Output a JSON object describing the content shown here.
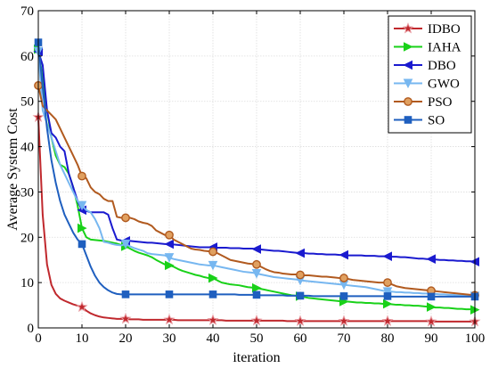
{
  "chart_data": {
    "type": "line",
    "title": "",
    "xlabel": "iteration",
    "ylabel": "Average System Cost",
    "xlim": [
      0,
      100
    ],
    "ylim": [
      0,
      70
    ],
    "xticks": [
      0,
      10,
      20,
      30,
      40,
      50,
      60,
      70,
      80,
      90,
      100
    ],
    "yticks": [
      0,
      10,
      20,
      30,
      40,
      50,
      60,
      70
    ],
    "grid": true,
    "legend_position": "top-right",
    "x": [
      0,
      1,
      2,
      3,
      4,
      5,
      6,
      7,
      8,
      9,
      10,
      11,
      12,
      13,
      14,
      15,
      16,
      17,
      18,
      19,
      20,
      21,
      22,
      23,
      24,
      25,
      26,
      27,
      28,
      29,
      30,
      31,
      32,
      33,
      34,
      35,
      36,
      37,
      38,
      39,
      40,
      41,
      42,
      43,
      44,
      45,
      46,
      47,
      48,
      49,
      50,
      51,
      52,
      53,
      54,
      55,
      56,
      57,
      58,
      59,
      60,
      61,
      62,
      63,
      64,
      65,
      66,
      67,
      68,
      69,
      70,
      71,
      72,
      73,
      74,
      75,
      76,
      77,
      78,
      79,
      80,
      81,
      82,
      83,
      84,
      85,
      86,
      87,
      88,
      89,
      90,
      91,
      92,
      93,
      94,
      95,
      96,
      97,
      98,
      99,
      100
    ],
    "series": [
      {
        "name": "IDBO",
        "color": "#c0282d",
        "marker": "star",
        "values": [
          46.5,
          25.0,
          14.0,
          9.5,
          7.5,
          6.5,
          6.0,
          5.6,
          5.2,
          4.9,
          4.6,
          3.8,
          3.2,
          2.8,
          2.5,
          2.3,
          2.2,
          2.1,
          2.0,
          2.0,
          2.0,
          1.9,
          1.9,
          1.9,
          1.8,
          1.8,
          1.8,
          1.8,
          1.8,
          1.8,
          1.8,
          1.8,
          1.7,
          1.7,
          1.7,
          1.7,
          1.7,
          1.7,
          1.7,
          1.7,
          1.7,
          1.7,
          1.7,
          1.6,
          1.6,
          1.6,
          1.6,
          1.6,
          1.6,
          1.6,
          1.6,
          1.6,
          1.6,
          1.6,
          1.6,
          1.6,
          1.6,
          1.5,
          1.5,
          1.5,
          1.5,
          1.5,
          1.5,
          1.5,
          1.5,
          1.5,
          1.5,
          1.5,
          1.5,
          1.5,
          1.5,
          1.5,
          1.5,
          1.5,
          1.5,
          1.5,
          1.5,
          1.5,
          1.5,
          1.5,
          1.5,
          1.5,
          1.5,
          1.5,
          1.5,
          1.5,
          1.5,
          1.5,
          1.5,
          1.5,
          1.4,
          1.4,
          1.4,
          1.4,
          1.4,
          1.4,
          1.4,
          1.4,
          1.4,
          1.4,
          1.4
        ]
      },
      {
        "name": "IAHA",
        "color": "#19d119",
        "marker": "triangle-right",
        "values": [
          61.5,
          55.0,
          48.0,
          42.0,
          38.0,
          36.0,
          35.5,
          34.0,
          31.0,
          27.0,
          22.0,
          20.0,
          19.5,
          19.4,
          19.3,
          19.2,
          19.0,
          18.8,
          18.6,
          18.3,
          18.0,
          17.5,
          17.0,
          16.6,
          16.3,
          16.0,
          15.6,
          15.0,
          14.5,
          14.0,
          13.8,
          13.5,
          13.0,
          12.6,
          12.3,
          12.0,
          11.7,
          11.5,
          11.2,
          11.0,
          11.0,
          10.5,
          10.0,
          9.8,
          9.6,
          9.5,
          9.4,
          9.2,
          9.0,
          8.9,
          8.8,
          8.6,
          8.4,
          8.2,
          8.0,
          7.8,
          7.6,
          7.4,
          7.2,
          7.1,
          7.0,
          6.8,
          6.6,
          6.5,
          6.4,
          6.3,
          6.2,
          6.1,
          6.0,
          5.9,
          5.8,
          5.8,
          5.7,
          5.6,
          5.6,
          5.5,
          5.5,
          5.4,
          5.4,
          5.3,
          5.3,
          5.2,
          5.1,
          5.1,
          5.0,
          5.0,
          4.9,
          4.9,
          4.8,
          4.7,
          4.6,
          4.5,
          4.5,
          4.4,
          4.4,
          4.3,
          4.2,
          4.2,
          4.1,
          4.1,
          4.0
        ]
      },
      {
        "name": "DBO",
        "color": "#1a1acf",
        "marker": "triangle-left",
        "values": [
          61.0,
          58.0,
          48.0,
          43.0,
          42.0,
          40.0,
          39.0,
          34.0,
          31.0,
          28.0,
          26.0,
          25.8,
          25.5,
          25.5,
          25.5,
          25.5,
          25.0,
          22.0,
          19.5,
          19.3,
          19.2,
          19.2,
          19.1,
          19.0,
          18.9,
          18.8,
          18.8,
          18.7,
          18.6,
          18.5,
          18.5,
          18.4,
          18.3,
          18.2,
          18.1,
          18.0,
          17.9,
          17.8,
          17.8,
          17.8,
          17.8,
          17.7,
          17.7,
          17.7,
          17.6,
          17.6,
          17.6,
          17.5,
          17.5,
          17.5,
          17.4,
          17.3,
          17.2,
          17.1,
          17.0,
          17.0,
          16.9,
          16.8,
          16.7,
          16.6,
          16.5,
          16.5,
          16.4,
          16.4,
          16.3,
          16.3,
          16.2,
          16.2,
          16.2,
          16.1,
          16.1,
          16.0,
          16.0,
          16.0,
          16.0,
          15.9,
          15.9,
          15.9,
          15.8,
          15.8,
          15.8,
          15.7,
          15.7,
          15.6,
          15.6,
          15.5,
          15.4,
          15.3,
          15.3,
          15.2,
          15.2,
          15.1,
          15.0,
          15.0,
          14.9,
          14.9,
          14.8,
          14.8,
          14.7,
          14.7,
          14.6
        ]
      },
      {
        "name": "GWO",
        "color": "#77b7f0",
        "marker": "triangle-down",
        "values": [
          61.0,
          48.0,
          45.0,
          42.0,
          39.0,
          36.0,
          34.0,
          32.0,
          30.0,
          28.0,
          27.0,
          26.0,
          25.5,
          24.0,
          22.0,
          19.0,
          18.8,
          18.5,
          18.3,
          18.2,
          18.5,
          18.0,
          17.6,
          17.3,
          17.0,
          16.5,
          16.3,
          16.2,
          16.1,
          16.0,
          15.5,
          15.2,
          15.0,
          14.8,
          14.6,
          14.4,
          14.2,
          14.0,
          13.9,
          13.8,
          13.8,
          13.6,
          13.4,
          13.2,
          13.0,
          12.8,
          12.6,
          12.4,
          12.3,
          12.2,
          12.0,
          11.8,
          11.6,
          11.4,
          11.2,
          11.1,
          11.0,
          10.9,
          10.8,
          10.7,
          10.5,
          10.4,
          10.3,
          10.2,
          10.1,
          10.0,
          9.9,
          9.8,
          9.7,
          9.6,
          9.5,
          9.4,
          9.3,
          9.2,
          9.1,
          9.0,
          8.8,
          8.6,
          8.4,
          8.2,
          8.0,
          8.0,
          7.9,
          7.9,
          7.8,
          7.8,
          7.7,
          7.7,
          7.6,
          7.6,
          7.5,
          7.5,
          7.4,
          7.4,
          7.3,
          7.3,
          7.2,
          7.2,
          7.1,
          7.1,
          7.0
        ]
      },
      {
        "name": "PSO",
        "color": "#b15a1f",
        "marker": "circle",
        "values": [
          53.5,
          49.0,
          48.0,
          47.0,
          46.0,
          44.0,
          42.0,
          40.0,
          38.0,
          36.0,
          33.5,
          33.0,
          31.0,
          30.0,
          29.5,
          28.5,
          28.0,
          28.0,
          24.5,
          24.3,
          24.3,
          24.3,
          24.0,
          23.5,
          23.2,
          23.0,
          22.5,
          21.5,
          21.0,
          20.5,
          20.5,
          19.5,
          19.0,
          18.5,
          18.0,
          17.5,
          17.3,
          17.2,
          17.0,
          16.9,
          16.8,
          16.5,
          16.0,
          15.5,
          15.0,
          14.8,
          14.6,
          14.4,
          14.2,
          14.1,
          14.0,
          13.5,
          13.0,
          12.6,
          12.3,
          12.2,
          12.0,
          11.9,
          11.8,
          11.8,
          11.7,
          11.6,
          11.6,
          11.5,
          11.4,
          11.3,
          11.3,
          11.2,
          11.1,
          11.0,
          11.0,
          10.8,
          10.6,
          10.5,
          10.4,
          10.3,
          10.2,
          10.1,
          10.0,
          10.0,
          10.0,
          9.6,
          9.2,
          9.0,
          8.8,
          8.7,
          8.6,
          8.5,
          8.4,
          8.3,
          8.2,
          8.1,
          8.0,
          7.9,
          7.8,
          7.7,
          7.6,
          7.5,
          7.4,
          7.3,
          7.2
        ]
      },
      {
        "name": "SO",
        "color": "#1f5fbf",
        "marker": "square",
        "values": [
          63.0,
          53.0,
          44.0,
          37.0,
          32.0,
          28.0,
          25.0,
          23.0,
          21.0,
          19.5,
          18.5,
          16.0,
          13.5,
          11.5,
          10.0,
          9.0,
          8.3,
          7.8,
          7.5,
          7.4,
          7.4,
          7.4,
          7.4,
          7.4,
          7.4,
          7.4,
          7.4,
          7.4,
          7.4,
          7.4,
          7.4,
          7.4,
          7.4,
          7.4,
          7.4,
          7.4,
          7.4,
          7.4,
          7.4,
          7.4,
          7.4,
          7.4,
          7.4,
          7.4,
          7.4,
          7.4,
          7.3,
          7.3,
          7.3,
          7.3,
          7.3,
          7.2,
          7.2,
          7.2,
          7.2,
          7.2,
          7.2,
          7.1,
          7.1,
          7.1,
          7.1,
          7.1,
          7.1,
          7.0,
          7.0,
          7.0,
          7.0,
          7.0,
          7.0,
          7.0,
          7.0,
          7.0,
          7.0,
          7.0,
          7.0,
          7.0,
          7.0,
          7.0,
          7.0,
          7.0,
          7.0,
          6.9,
          6.9,
          6.9,
          6.9,
          6.9,
          6.9,
          6.9,
          6.9,
          6.9,
          6.9,
          6.9,
          6.9,
          6.9,
          6.9,
          6.9,
          6.9,
          6.9,
          6.9,
          6.9,
          6.9
        ]
      }
    ]
  }
}
